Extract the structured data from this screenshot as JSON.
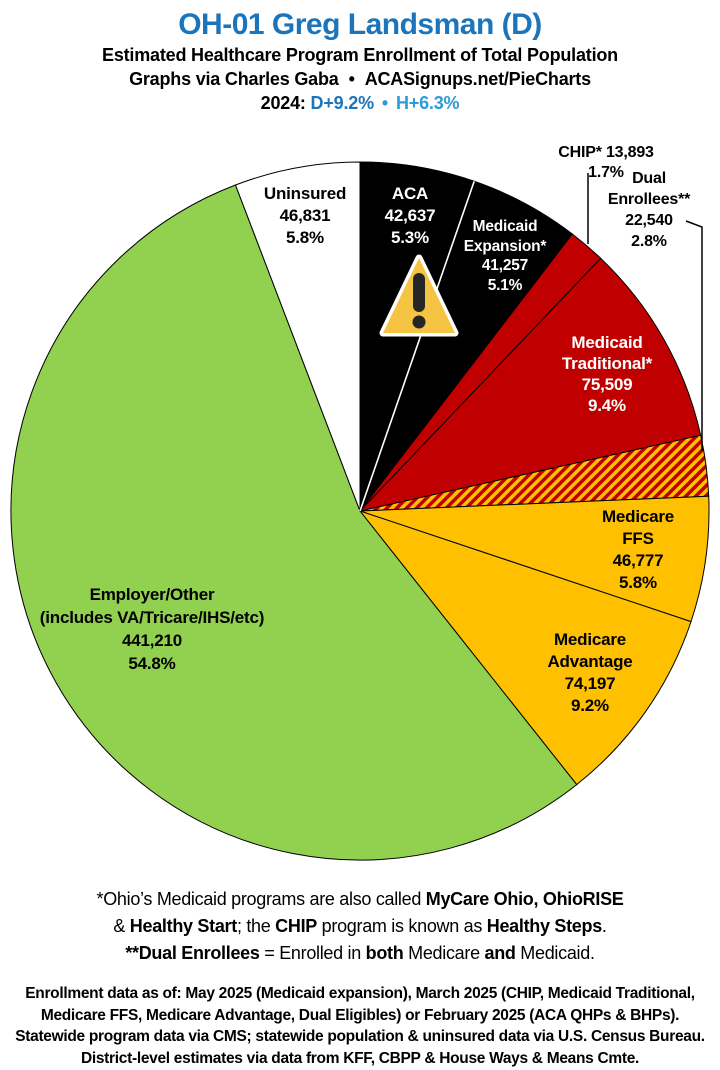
{
  "header": {
    "title": "OH-01 Greg Landsman (D)",
    "subtitle": "Estimated Healthcare Program Enrollment of Total Population",
    "credit_left": "Graphs via Charles Gaba",
    "credit_bullet": "•",
    "credit_right": "ACASignups.net/PieCharts",
    "year_label": "2024:",
    "partisan_lean_d": "D+9.2%",
    "lean_bullet": "•",
    "partisan_lean_h": "H+6.3%",
    "colors": {
      "title_blue": "#1B75BC",
      "lean_d_blue": "#1B75BC",
      "lean_h_blue": "#2E9AD6"
    }
  },
  "chart_data": {
    "type": "pie",
    "title": "Estimated Healthcare Program Enrollment of Total Population",
    "start_angle": "12 o'clock",
    "direction": "clockwise",
    "slices": [
      {
        "id": "aca",
        "label": "ACA",
        "value": 42637,
        "value_text": "42,637",
        "pct": 5.3,
        "pct_text": "5.3%",
        "color": "#000000",
        "label_placement": "inside",
        "lines": [
          "ACA",
          "42,637",
          "5.3%"
        ]
      },
      {
        "id": "medicaid-expansion",
        "label": "Medicaid Expansion*",
        "value": 41257,
        "value_text": "41,257",
        "pct": 5.1,
        "pct_text": "5.1%",
        "color": "#000000",
        "label_placement": "inside",
        "lines": [
          "Medicaid",
          "Expansion*",
          "41,257",
          "5.1%"
        ]
      },
      {
        "id": "chip",
        "label": "CHIP*",
        "value": 13893,
        "value_text": "13,893",
        "pct": 1.7,
        "pct_text": "1.7%",
        "color": "#C00000",
        "label_placement": "outside",
        "lines": [
          "CHIP* 13,893 1.7%"
        ]
      },
      {
        "id": "medicaid-traditional",
        "label": "Medicaid Traditional*",
        "value": 75509,
        "value_text": "75,509",
        "pct": 9.4,
        "pct_text": "9.4%",
        "color": "#C00000",
        "label_placement": "inside",
        "lines": [
          "Medicaid",
          "Traditional*",
          "75,509",
          "9.4%"
        ]
      },
      {
        "id": "dual-enrollees",
        "label": "Dual Enrollees**",
        "value": 22540,
        "value_text": "22,540",
        "pct": 2.8,
        "pct_text": "2.8%",
        "color": "hatch-red-yellow",
        "label_placement": "outside",
        "lines": [
          "Dual Enrollees**",
          "22,540 2.8%"
        ]
      },
      {
        "id": "medicare-ffs",
        "label": "Medicare FFS",
        "value": 46777,
        "value_text": "46,777",
        "pct": 5.8,
        "pct_text": "5.8%",
        "color": "#FFC000",
        "label_placement": "inside",
        "lines": [
          "Medicare FFS",
          "46,777",
          "5.8%"
        ]
      },
      {
        "id": "medicare-advantage",
        "label": "Medicare Advantage",
        "value": 74197,
        "value_text": "74,197",
        "pct": 9.2,
        "pct_text": "9.2%",
        "color": "#FFC000",
        "label_placement": "inside",
        "lines": [
          "Medicare",
          "Advantage",
          "74,197",
          "9.2%"
        ]
      },
      {
        "id": "employer-other",
        "label": "Employer/Other (includes VA/Tricare/IHS/etc)",
        "value": 441210,
        "value_text": "441,210",
        "pct": 54.8,
        "pct_text": "54.8%",
        "color": "#92D050",
        "label_placement": "inside",
        "lines": [
          "Employer/Other",
          "(includes VA/Tricare/IHS/etc)",
          "441,210",
          "54.8%"
        ]
      },
      {
        "id": "uninsured",
        "label": "Uninsured",
        "value": 46831,
        "value_text": "46,831",
        "pct": 5.8,
        "pct_text": "5.8%",
        "color": "#FFFFFF",
        "label_placement": "inside",
        "lines": [
          "Uninsured",
          "46,831",
          "5.8%"
        ]
      }
    ],
    "hatch_colors": {
      "base": "#FFC000",
      "stripe": "#C00000"
    },
    "warning_icon_colors": {
      "fill": "#F6C443",
      "border": "#FFFFFF",
      "glyph": "#262626"
    }
  },
  "footnotes": {
    "lines": [
      [
        {
          "t": "*Ohio’s Medicaid programs are also called ",
          "b": false
        },
        {
          "t": "MyCare Ohio, OhioRISE",
          "b": true
        }
      ],
      [
        {
          "t": "& ",
          "b": false
        },
        {
          "t": "Healthy Start",
          "b": true
        },
        {
          "t": "; the ",
          "b": false
        },
        {
          "t": "CHIP",
          "b": true
        },
        {
          "t": " program is known as ",
          "b": false
        },
        {
          "t": "Healthy Steps",
          "b": true
        },
        {
          "t": ".",
          "b": false
        }
      ],
      [
        {
          "t": "**Dual Enrollees",
          "b": true
        },
        {
          "t": " = Enrolled in ",
          "b": false
        },
        {
          "t": "both",
          "b": true
        },
        {
          "t": " Medicare ",
          "b": false
        },
        {
          "t": "and",
          "b": true
        },
        {
          "t": " Medicaid.",
          "b": false
        }
      ]
    ]
  },
  "source_note": {
    "lines": [
      "Enrollment data as of: May 2025 (Medicaid expansion), March 2025 (CHIP, Medicaid Traditional,",
      "Medicare FFS, Medicare Advantage, Dual Eligibles) or February 2025 (ACA QHPs & BHPs).",
      "Statewide program data via CMS; statewide population & uninsured data via U.S. Census Bureau.",
      "District-level estimates via data from KFF, CBPP & House Ways & Means Cmte."
    ]
  }
}
